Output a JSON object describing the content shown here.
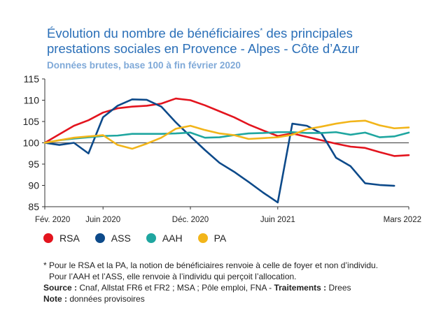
{
  "title": {
    "line1_part1": "Évolution du nombre de bénéficiaires",
    "line1_sup": "*",
    "line1_part2": " des principales",
    "line2": "prestations sociales en Provence - Alpes - Côte d’Azur"
  },
  "subtitle": "Données brutes, base 100 à fin février 2020",
  "colors": {
    "RSA": "#e3141e",
    "ASS": "#0d4a8a",
    "AAH": "#1fa6a0",
    "PA": "#f2b51a",
    "axis": "#333333",
    "grid": "#d9d9d9"
  },
  "chart_data": {
    "type": "line",
    "title": "Évolution du nombre de bénéficiaires* des principales prestations sociales en Provence - Alpes - Côte d’Azur",
    "subtitle": "Données brutes, base 100 à fin février 2020",
    "x": [
      "2020-02",
      "2020-03",
      "2020-04",
      "2020-05",
      "2020-06",
      "2020-07",
      "2020-08",
      "2020-09",
      "2020-10",
      "2020-11",
      "2020-12",
      "2021-01",
      "2021-02",
      "2021-03",
      "2021-04",
      "2021-05",
      "2021-06",
      "2021-07",
      "2021-08",
      "2021-09",
      "2021-10",
      "2021-11",
      "2021-12",
      "2022-01",
      "2022-02",
      "2022-03"
    ],
    "x_tick_labels": [
      "Fév. 2020",
      "Juin 2020",
      "Déc. 2020",
      "Juin 2021",
      "Mars 2022"
    ],
    "x_tick_positions": [
      "2020-02",
      "2020-06",
      "2020-12",
      "2021-06",
      "2022-03"
    ],
    "ylim": [
      85,
      115
    ],
    "y_ticks": [
      85,
      90,
      95,
      100,
      105,
      110,
      115
    ],
    "reference_line": 100,
    "grid": false,
    "legend_position": "bottom",
    "series": [
      {
        "name": "RSA",
        "values": [
          100,
          102,
          104,
          105.3,
          107.1,
          108.1,
          108.5,
          108.7,
          109.2,
          110.4,
          110,
          108.8,
          107.4,
          106,
          104.3,
          102.9,
          101.6,
          102.2,
          101.4,
          100.6,
          99.8,
          99.1,
          98.8,
          97.8,
          96.9,
          97.1
        ]
      },
      {
        "name": "ASS",
        "values": [
          100,
          99.5,
          100,
          97.5,
          106,
          108.7,
          110.2,
          110.1,
          108.5,
          104.8,
          101.5,
          98.3,
          95.3,
          93.2,
          90.8,
          88.3,
          86,
          104.5,
          104,
          102.2,
          96.5,
          94.5,
          90.5,
          90.1,
          89.9,
          null
        ]
      },
      {
        "name": "AAH",
        "values": [
          100,
          100.6,
          101,
          101.3,
          101.6,
          101.7,
          102.1,
          102.1,
          102.1,
          102.2,
          102.4,
          101.2,
          101.3,
          101.8,
          102.2,
          102.3,
          102.5,
          102.5,
          102.3,
          102.3,
          102.5,
          101.9,
          102.4,
          101.3,
          101.5,
          102.4
        ]
      },
      {
        "name": "PA",
        "values": [
          100,
          100.6,
          101.2,
          101.5,
          101.8,
          99.5,
          98.6,
          99.8,
          101.2,
          103.3,
          104,
          103,
          102.2,
          101.8,
          100.9,
          101.1,
          101.3,
          101.9,
          103.2,
          103.8,
          104.5,
          105,
          105.2,
          104.1,
          103.4,
          103.6
        ]
      }
    ]
  },
  "legend": [
    {
      "label": "RSA",
      "color": "#e3141e"
    },
    {
      "label": "ASS",
      "color": "#0d4a8a"
    },
    {
      "label": "AAH",
      "color": "#1fa6a0"
    },
    {
      "label": "PA",
      "color": "#f2b51a"
    }
  ],
  "notes": {
    "footnote_line1": "* Pour le RSA et la PA, la notion de bénéficiaires renvoie à celle de foyer et non d’individu.",
    "footnote_line2": "Pour l’AAH et l’ASS, elle renvoie à l’individu qui perçoit l’allocation.",
    "source_label": "Source :",
    "source_text": " Cnaf, Allstat FR6 et FR2 ; MSA ;  Pôle emploi, FNA - ",
    "traitements_label": "Traitements :",
    "traitements_text": " Drees",
    "note_label": "Note :",
    "note_text": " données provisoires"
  }
}
